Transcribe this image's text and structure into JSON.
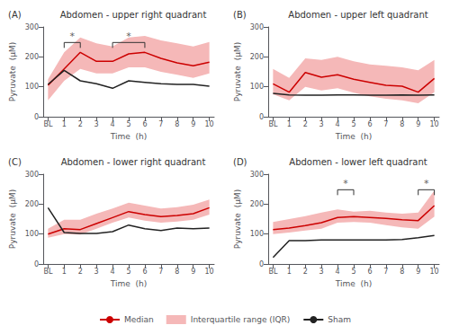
{
  "chart_data": [
    {
      "type": "line",
      "panel_label": "(A)",
      "title": "Abdomen - upper right quadrant",
      "x_label": "Time  (h)",
      "y_label": "Pyruvate  (μM)",
      "x": [
        0,
        1,
        2,
        3,
        4,
        5,
        6,
        7,
        8,
        9,
        10
      ],
      "xlim": [
        -0.3,
        10.3
      ],
      "xticks": [
        {
          "value": 0,
          "label": "BL"
        },
        1,
        2,
        3,
        4,
        5,
        6,
        7,
        8,
        9,
        10
      ],
      "ylim": [
        0,
        300
      ],
      "yticks": [
        0,
        100,
        200,
        300
      ],
      "grid": false,
      "legend": "bottom",
      "series": [
        {
          "name": "Median",
          "color": "#cc0000",
          "values": [
            105,
            160,
            215,
            185,
            185,
            210,
            215,
            195,
            180,
            170,
            182
          ]
        },
        {
          "name": "Interquartile range (IQR)",
          "type": "band",
          "color": "#f5b8b8",
          "low": [
            55,
            120,
            160,
            145,
            145,
            165,
            165,
            150,
            140,
            130,
            145
          ],
          "high": [
            125,
            215,
            265,
            245,
            235,
            265,
            270,
            255,
            245,
            235,
            250
          ]
        },
        {
          "name": "Sham",
          "color": "#222222",
          "values": [
            108,
            155,
            120,
            110,
            95,
            120,
            115,
            110,
            108,
            108,
            102
          ]
        }
      ],
      "annotations": [
        {
          "text": "*",
          "x1": 1,
          "x2": 2,
          "y": 248,
          "x": 1.5,
          "color": "#333333"
        },
        {
          "text": "*",
          "x1": 4,
          "x2": 6,
          "y": 248,
          "x": 5.0,
          "color": "#333333"
        }
      ]
    },
    {
      "type": "line",
      "panel_label": "(B)",
      "title": "Abdomen - upper left quadrant",
      "x_label": "Time  (h)",
      "y_label": "Pyruvate  (μM)",
      "x": [
        0,
        1,
        2,
        3,
        4,
        5,
        6,
        7,
        8,
        9,
        10
      ],
      "xlim": [
        -0.3,
        10.3
      ],
      "xticks": [
        {
          "value": 0,
          "label": "BL"
        },
        1,
        2,
        3,
        4,
        5,
        6,
        7,
        8,
        9,
        10
      ],
      "ylim": [
        0,
        300
      ],
      "yticks": [
        0,
        100,
        200,
        300
      ],
      "grid": false,
      "legend": "bottom",
      "series": [
        {
          "name": "Median",
          "color": "#cc0000",
          "values": [
            110,
            82,
            148,
            132,
            140,
            125,
            115,
            105,
            102,
            82,
            128
          ]
        },
        {
          "name": "Interquartile range (IQR)",
          "type": "band",
          "color": "#f5b8b8",
          "low": [
            75,
            55,
            100,
            88,
            95,
            80,
            68,
            60,
            55,
            45,
            82
          ],
          "high": [
            160,
            130,
            195,
            190,
            200,
            185,
            175,
            170,
            165,
            155,
            190
          ]
        },
        {
          "name": "Sham",
          "color": "#222222",
          "values": [
            78,
            73,
            72,
            72,
            73,
            73,
            72,
            72,
            73,
            72,
            73
          ]
        }
      ],
      "annotations": []
    },
    {
      "type": "line",
      "panel_label": "(C)",
      "title": "Abdomen - lower right quadrant",
      "x_label": "Time  (h)",
      "y_label": "Pyruvate  (μM)",
      "x": [
        0,
        1,
        2,
        3,
        4,
        5,
        6,
        7,
        8,
        9,
        10
      ],
      "xlim": [
        -0.3,
        10.3
      ],
      "xticks": [
        {
          "value": 0,
          "label": "BL"
        },
        1,
        2,
        3,
        4,
        5,
        6,
        7,
        8,
        9,
        10
      ],
      "ylim": [
        0,
        300
      ],
      "yticks": [
        0,
        100,
        200,
        300
      ],
      "grid": false,
      "legend": "bottom",
      "series": [
        {
          "name": "Median",
          "color": "#cc0000",
          "values": [
            100,
            118,
            115,
            135,
            155,
            175,
            165,
            158,
            162,
            168,
            188
          ]
        },
        {
          "name": "Interquartile range (IQR)",
          "type": "band",
          "color": "#f5b8b8",
          "low": [
            88,
            100,
            98,
            118,
            138,
            155,
            145,
            138,
            142,
            148,
            165
          ],
          "high": [
            118,
            148,
            148,
            168,
            185,
            205,
            195,
            185,
            190,
            198,
            215
          ]
        },
        {
          "name": "Sham",
          "color": "#222222",
          "values": [
            188,
            105,
            102,
            102,
            108,
            130,
            118,
            112,
            120,
            118,
            120
          ]
        }
      ],
      "annotations": []
    },
    {
      "type": "line",
      "panel_label": "(D)",
      "title": "Abdomen - lower left quadrant",
      "x_label": "Time  (h)",
      "y_label": "Pyruvate  (μM)",
      "x": [
        0,
        1,
        2,
        3,
        4,
        5,
        6,
        7,
        8,
        9,
        10
      ],
      "xlim": [
        -0.3,
        10.3
      ],
      "xticks": [
        {
          "value": 0,
          "label": "BL"
        },
        1,
        2,
        3,
        4,
        5,
        6,
        7,
        8,
        9,
        10
      ],
      "ylim": [
        0,
        300
      ],
      "yticks": [
        0,
        100,
        200,
        300
      ],
      "grid": false,
      "legend": "bottom",
      "series": [
        {
          "name": "Median",
          "color": "#cc0000",
          "values": [
            115,
            120,
            128,
            138,
            155,
            158,
            155,
            152,
            148,
            145,
            195
          ]
        },
        {
          "name": "Interquartile range (IQR)",
          "type": "band",
          "color": "#f5b8b8",
          "low": [
            100,
            105,
            112,
            118,
            138,
            140,
            138,
            130,
            122,
            118,
            158
          ],
          "high": [
            140,
            150,
            160,
            172,
            182,
            175,
            178,
            172,
            168,
            172,
            245
          ]
        },
        {
          "name": "Sham",
          "color": "#222222",
          "values": [
            22,
            78,
            78,
            80,
            80,
            80,
            80,
            80,
            82,
            88,
            95
          ]
        }
      ],
      "annotations": [
        {
          "text": "*",
          "x1": 4,
          "x2": 5,
          "y": 248,
          "x": 4.5,
          "color": "#333333"
        },
        {
          "text": "*",
          "x1": 9,
          "x2": 10,
          "y": 248,
          "x": 9.5,
          "color": "#333333"
        }
      ]
    }
  ]
}
